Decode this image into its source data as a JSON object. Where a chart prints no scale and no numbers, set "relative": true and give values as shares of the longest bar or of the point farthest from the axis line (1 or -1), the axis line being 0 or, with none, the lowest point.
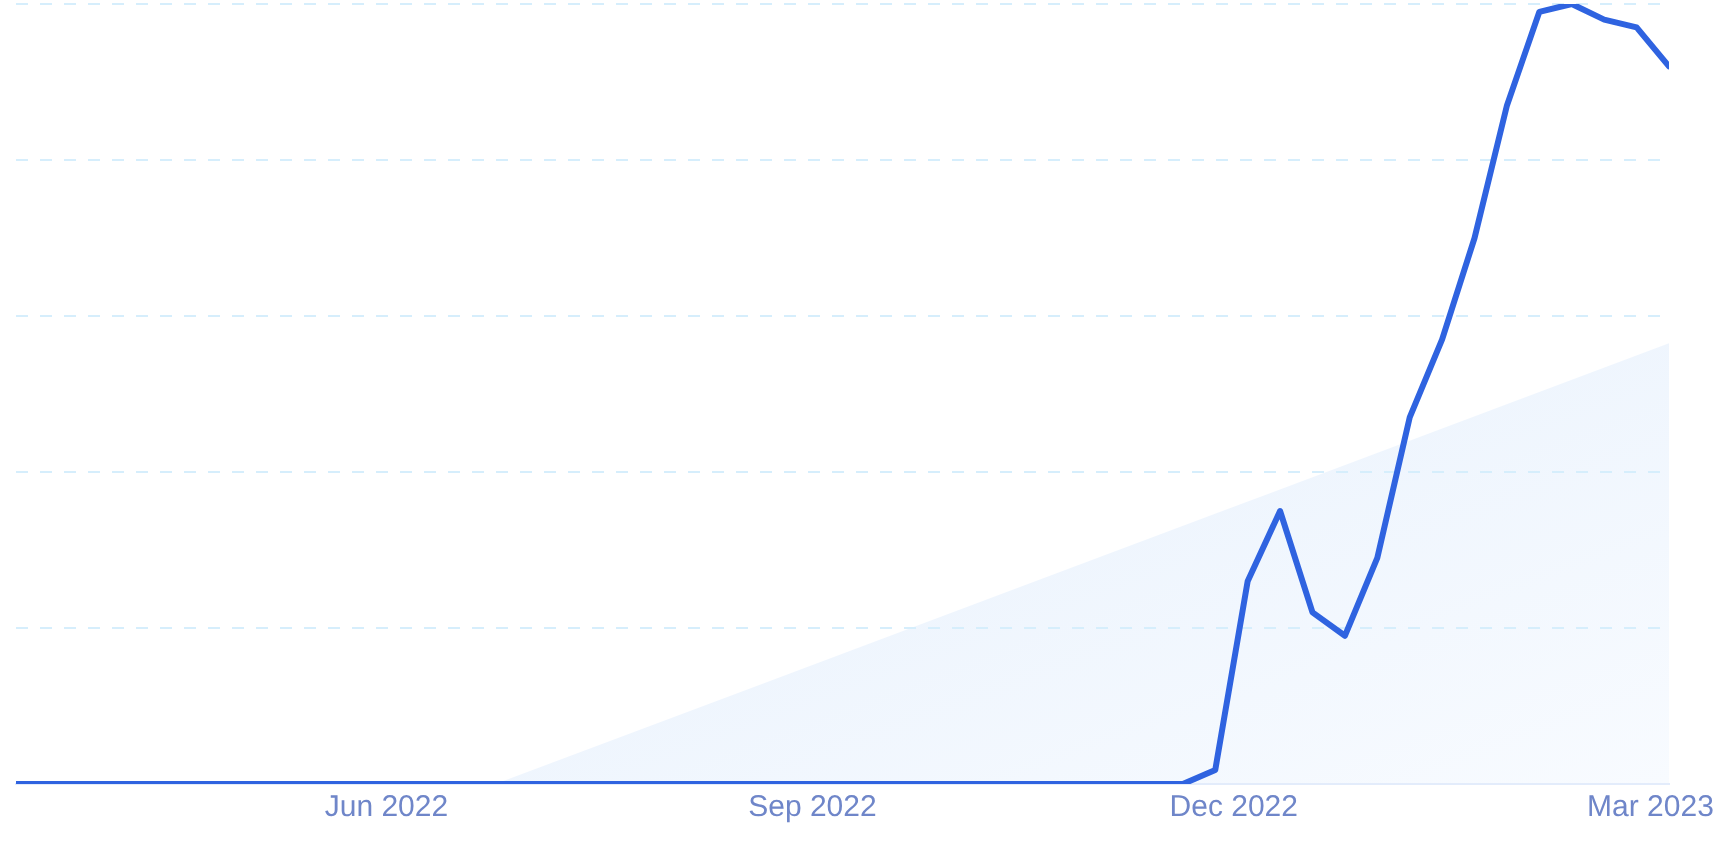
{
  "chart_data": {
    "type": "line",
    "relative": true,
    "x": [
      "2022-03-13",
      "2022-11-20",
      "2022-11-27",
      "2022-12-04",
      "2022-12-11",
      "2022-12-18",
      "2022-12-25",
      "2023-01-01",
      "2023-01-08",
      "2023-01-15",
      "2023-01-22",
      "2023-01-29",
      "2023-02-05",
      "2023-02-12",
      "2023-02-19",
      "2023-02-26",
      "2023-03-05"
    ],
    "series": [
      {
        "color": "#2f63e0",
        "values": [
          0,
          0,
          0.018,
          0.26,
          0.35,
          0.22,
          0.19,
          0.29,
          0.47,
          0.57,
          0.7,
          0.87,
          0.99,
          1,
          0.98,
          0.97,
          0.92
        ]
      }
    ],
    "xlim": [
      "2022-03-13",
      "2023-03-05"
    ],
    "xticks": [
      {
        "value": "2022-06-01",
        "label": "Jun 2022"
      },
      {
        "value": "2022-09-01",
        "label": "Sep 2022"
      },
      {
        "value": "2022-12-01",
        "label": "Dec 2022"
      },
      {
        "value": "2023-03-01",
        "label": "Mar 2023"
      }
    ],
    "grid": "y",
    "tick_labels": "x",
    "marker": "none",
    "line_style": "solid",
    "legend": false
  }
}
